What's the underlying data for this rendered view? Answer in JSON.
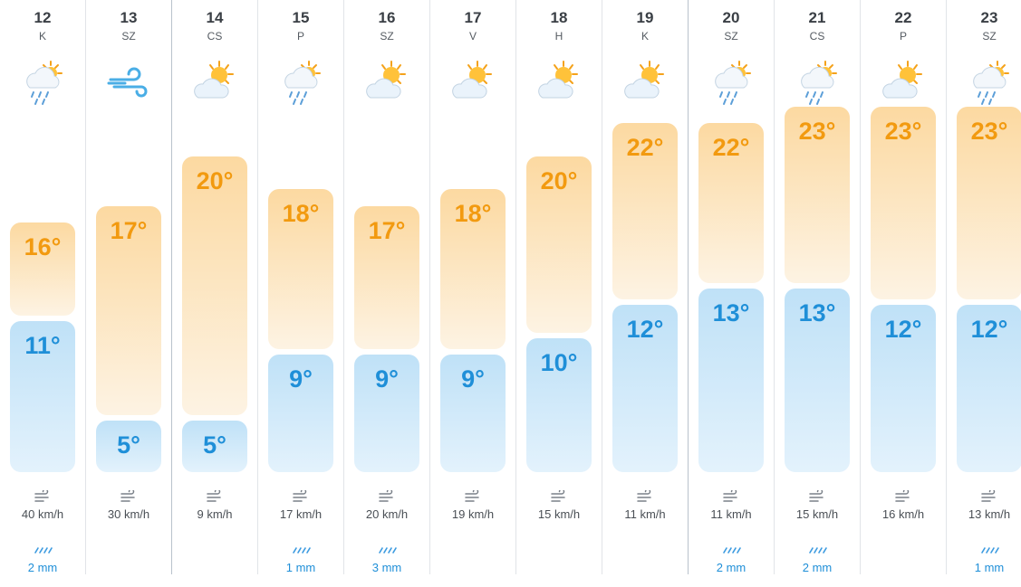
{
  "days": [
    {
      "num": "12",
      "name": "K",
      "icon": "rain-sun-icon",
      "max": "16°",
      "min": "11°",
      "max_c": 16,
      "min_c": 11,
      "wind": "40 km/h",
      "rain": "2 mm"
    },
    {
      "num": "13",
      "name": "SZ",
      "icon": "wind-icon",
      "max": "17°",
      "min": "5°",
      "max_c": 17,
      "min_c": 5,
      "wind": "30 km/h",
      "rain": ""
    },
    {
      "num": "14",
      "name": "CS",
      "icon": "partly-sunny-icon",
      "max": "20°",
      "min": "5°",
      "max_c": 20,
      "min_c": 5,
      "wind": "9 km/h",
      "rain": ""
    },
    {
      "num": "15",
      "name": "P",
      "icon": "rain-sun-icon",
      "max": "18°",
      "min": "9°",
      "max_c": 18,
      "min_c": 9,
      "wind": "17 km/h",
      "rain": "1 mm"
    },
    {
      "num": "16",
      "name": "SZ",
      "icon": "partly-sunny-icon",
      "max": "17°",
      "min": "9°",
      "max_c": 17,
      "min_c": 9,
      "wind": "20 km/h",
      "rain": "3 mm"
    },
    {
      "num": "17",
      "name": "V",
      "icon": "partly-sunny-icon",
      "max": "18°",
      "min": "9°",
      "max_c": 18,
      "min_c": 9,
      "wind": "19 km/h",
      "rain": ""
    },
    {
      "num": "18",
      "name": "H",
      "icon": "partly-sunny-icon",
      "max": "20°",
      "min": "10°",
      "max_c": 20,
      "min_c": 10,
      "wind": "15 km/h",
      "rain": ""
    },
    {
      "num": "19",
      "name": "K",
      "icon": "partly-sunny-icon",
      "max": "22°",
      "min": "12°",
      "max_c": 22,
      "min_c": 12,
      "wind": "11 km/h",
      "rain": ""
    },
    {
      "num": "20",
      "name": "SZ",
      "icon": "rain-sun-icon",
      "max": "22°",
      "min": "13°",
      "max_c": 22,
      "min_c": 13,
      "wind": "11 km/h",
      "rain": "2 mm"
    },
    {
      "num": "21",
      "name": "CS",
      "icon": "rain-sun-icon",
      "max": "23°",
      "min": "13°",
      "max_c": 23,
      "min_c": 13,
      "wind": "15 km/h",
      "rain": "2 mm"
    },
    {
      "num": "22",
      "name": "P",
      "icon": "partly-sunny-icon",
      "max": "23°",
      "min": "12°",
      "max_c": 23,
      "min_c": 12,
      "wind": "16 km/h",
      "rain": ""
    },
    {
      "num": "23",
      "name": "SZ",
      "icon": "rain-sun-icon",
      "max": "23°",
      "min": "12°",
      "max_c": 23,
      "min_c": 12,
      "wind": "13 km/h",
      "rain": "1 mm"
    }
  ],
  "colors": {
    "max_text": "#f29a10",
    "min_text": "#1f8fd8",
    "max_bar": "#fcd9a1",
    "min_bar": "#bfe1f7",
    "rain_text": "#1f8fd8"
  }
}
